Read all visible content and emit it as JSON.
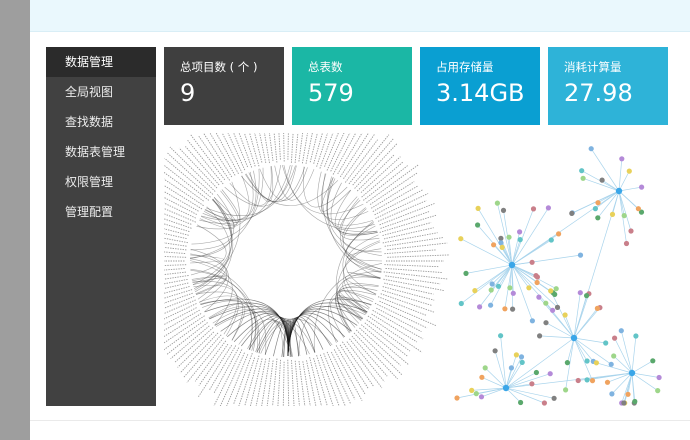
{
  "sidebar": {
    "items": [
      {
        "label": "数据管理",
        "active": true
      },
      {
        "label": "全局视图",
        "active": false
      },
      {
        "label": "查找数据",
        "active": false
      },
      {
        "label": "数据表管理",
        "active": false
      },
      {
        "label": "权限管理",
        "active": false
      },
      {
        "label": "管理配置",
        "active": false
      }
    ]
  },
  "stats": [
    {
      "label": "总项目数 ( 个 )",
      "value": "9",
      "color": "#3f3f3f"
    },
    {
      "label": "总表数",
      "value": "579",
      "color": "#1bb7a5"
    },
    {
      "label": "占用存储量",
      "value": "3.14GB",
      "color": "#0a9fd2"
    },
    {
      "label": "消耗计算量",
      "value": "27.98",
      "color": "#2eb3d8"
    }
  ],
  "colors": {
    "topbar": "#eaf8fd",
    "sidebar": "#414141",
    "sidebar_active": "#2b2b2b",
    "edge_network": "#a9d4ec"
  },
  "icons": []
}
